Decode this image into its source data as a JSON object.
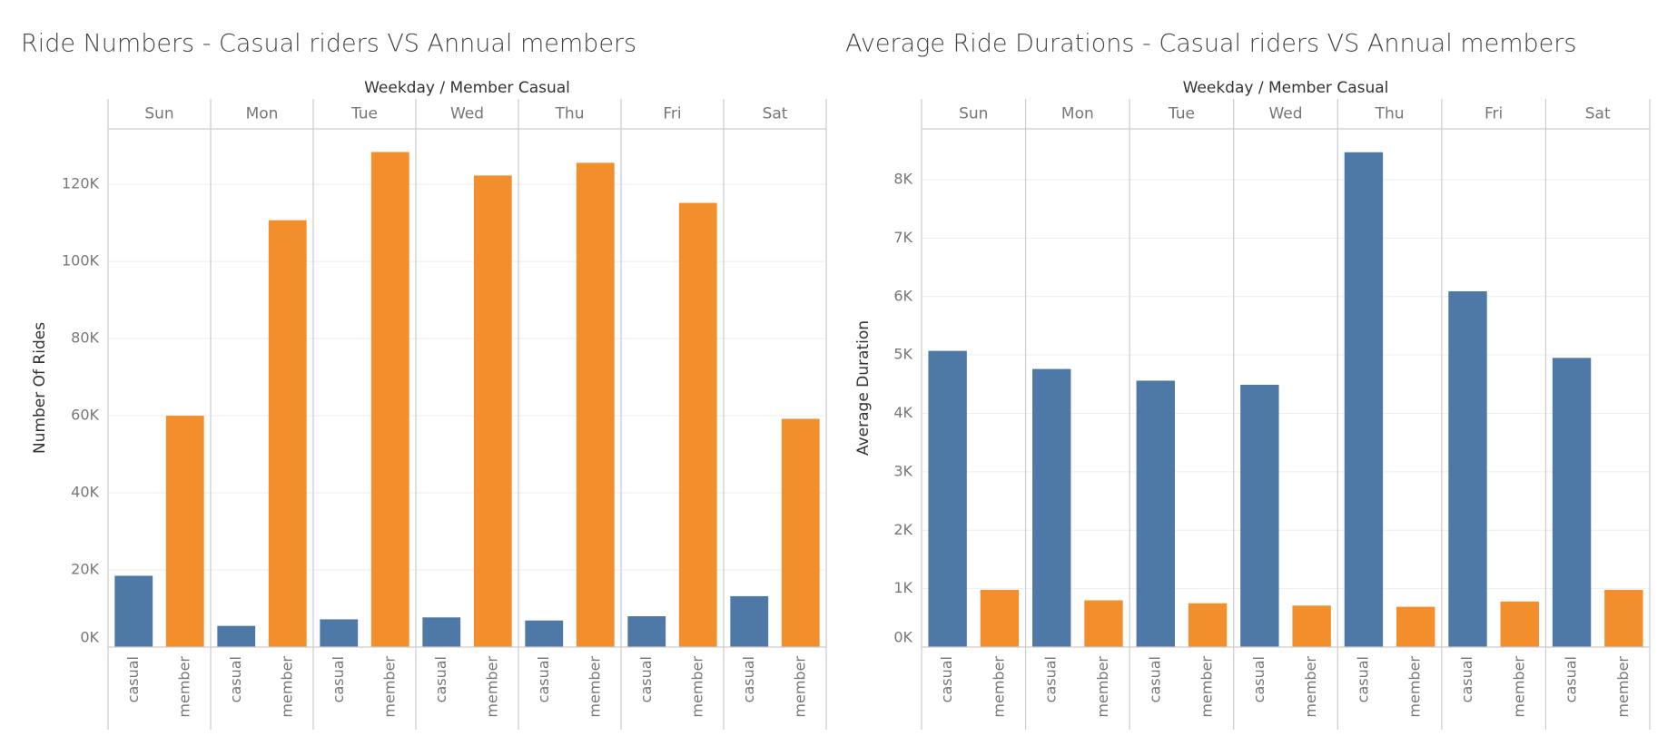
{
  "chart_data": [
    {
      "type": "bar",
      "title": "Ride Numbers - Casual riders VS Annual members",
      "header": "Weekday  /  Member Casual",
      "y_label": "Number Of Rides",
      "categories": [
        "Sun",
        "Mon",
        "Tue",
        "Wed",
        "Thu",
        "Fri",
        "Sat"
      ],
      "series": [
        {
          "name": "casual",
          "color": "#4e79a7",
          "values": [
            18500,
            5500,
            7200,
            7700,
            6900,
            8000,
            13200
          ]
        },
        {
          "name": "member",
          "color": "#f28e2b",
          "values": [
            60000,
            110700,
            128400,
            122300,
            125600,
            115200,
            59200
          ]
        }
      ],
      "ylim": [
        0,
        134400
      ],
      "yticks": [
        {
          "value": 0,
          "label": "0K"
        },
        {
          "value": 20000,
          "label": "20K"
        },
        {
          "value": 40000,
          "label": "40K"
        },
        {
          "value": 60000,
          "label": "60K"
        },
        {
          "value": 80000,
          "label": "80K"
        },
        {
          "value": 100000,
          "label": "100K"
        },
        {
          "value": 120000,
          "label": "120K"
        }
      ],
      "grid": true
    },
    {
      "type": "bar",
      "title": "Average Ride Durations - Casual riders VS Annual members",
      "header": "Weekday  /  Member Casual",
      "y_label": "Average Duration",
      "categories": [
        "Sun",
        "Mon",
        "Tue",
        "Wed",
        "Thu",
        "Fri",
        "Sat"
      ],
      "series": [
        {
          "name": "casual",
          "color": "#4e79a7",
          "values": [
            5070,
            4760,
            4560,
            4490,
            8470,
            6090,
            4950
          ]
        },
        {
          "name": "member",
          "color": "#f28e2b",
          "values": [
            980,
            800,
            750,
            710,
            690,
            780,
            980
          ]
        }
      ],
      "ylim": [
        0,
        8870
      ],
      "yticks": [
        {
          "value": 0,
          "label": "0K"
        },
        {
          "value": 1000,
          "label": "1K"
        },
        {
          "value": 2000,
          "label": "2K"
        },
        {
          "value": 3000,
          "label": "3K"
        },
        {
          "value": 4000,
          "label": "4K"
        },
        {
          "value": 5000,
          "label": "5K"
        },
        {
          "value": 6000,
          "label": "6K"
        },
        {
          "value": 7000,
          "label": "7K"
        },
        {
          "value": 8000,
          "label": "8K"
        }
      ],
      "grid": true
    }
  ]
}
